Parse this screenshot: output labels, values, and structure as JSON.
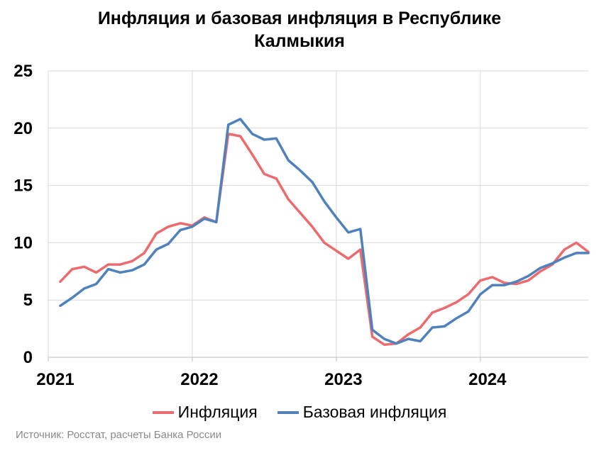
{
  "chart_data": {
    "type": "line",
    "title_line1": "Инфляция и базовая инфляция в Республике",
    "title_line2": "Калмыкия",
    "ylim": [
      0,
      25
    ],
    "yticks": [
      "0",
      "5",
      "10",
      "15",
      "20",
      "25"
    ],
    "xlim": [
      2021,
      2024.75
    ],
    "xticks": [
      "2021",
      "2022",
      "2023",
      "2024"
    ],
    "grid": true,
    "legend_position": "bottom",
    "series": [
      {
        "name": "Инфляция",
        "color": "#eb6b6e",
        "values": [
          6.6,
          7.7,
          7.9,
          7.4,
          8.1,
          8.1,
          8.4,
          9.1,
          10.8,
          11.4,
          11.7,
          11.5,
          12.2,
          11.8,
          19.5,
          19.3,
          17.7,
          16.0,
          15.6,
          13.8,
          12.6,
          11.4,
          10.0,
          9.3,
          8.6,
          9.4,
          1.8,
          1.1,
          1.2,
          2.0,
          2.6,
          3.9,
          4.3,
          4.8,
          5.5,
          6.7,
          7.0,
          6.5,
          6.4,
          6.7,
          7.5,
          8.1,
          9.4,
          10.0,
          9.2
        ]
      },
      {
        "name": "Базовая инфляция",
        "color": "#4f81bd",
        "values": [
          4.5,
          5.2,
          6.0,
          6.4,
          7.7,
          7.4,
          7.6,
          8.1,
          9.4,
          9.9,
          11.1,
          11.4,
          12.1,
          11.8,
          20.3,
          20.8,
          19.5,
          19.0,
          19.1,
          17.2,
          16.3,
          15.3,
          13.6,
          12.2,
          10.9,
          11.2,
          2.4,
          1.6,
          1.2,
          1.6,
          1.4,
          2.6,
          2.7,
          3.4,
          4.0,
          5.5,
          6.3,
          6.3,
          6.6,
          7.1,
          7.8,
          8.2,
          8.7,
          9.1,
          9.1
        ]
      }
    ]
  },
  "source": "Источник: Росстат, расчеты Банка России"
}
